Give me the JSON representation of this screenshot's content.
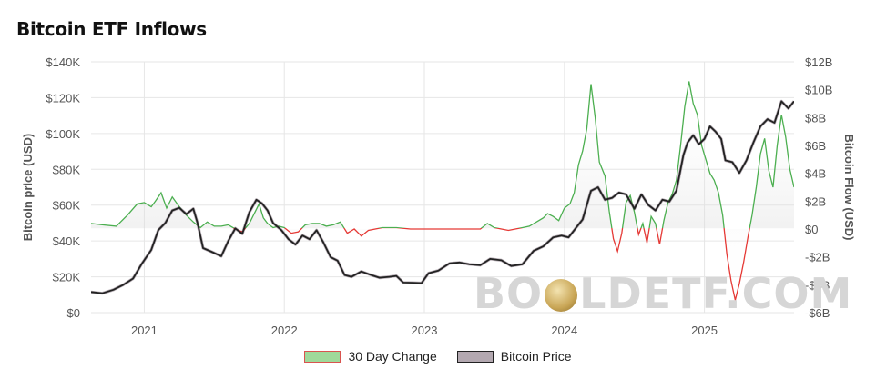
{
  "title": "Bitcoin ETF Inflows",
  "watermark": {
    "left": "BO",
    "right": "LDETF.COM",
    "icon": "gold-coin-icon"
  },
  "legend": {
    "change_label": "30 Day Change",
    "price_label": "Bitcoin Price"
  },
  "colors": {
    "positive": "#4caf50",
    "negative": "#e53935",
    "price": "#222222",
    "grid": "#e6e6e6"
  },
  "chart_data": {
    "type": "line",
    "title": "Bitcoin ETF Inflows",
    "xlabel": "",
    "ylabel": "Bitcoin price (USD)",
    "y2label": "Bitcoin Flow (USD)",
    "x_range": [
      2020.62,
      2025.64
    ],
    "x_ticks": [
      {
        "value": 2021,
        "label": "2021"
      },
      {
        "value": 2022,
        "label": "2022"
      },
      {
        "value": 2023,
        "label": "2023"
      },
      {
        "value": 2024,
        "label": "2024"
      },
      {
        "value": 2025,
        "label": "2025"
      }
    ],
    "ylim": [
      0,
      140000
    ],
    "y_ticks": [
      {
        "value": 0,
        "label": "$0"
      },
      {
        "value": 20000,
        "label": "$20K"
      },
      {
        "value": 40000,
        "label": "$40K"
      },
      {
        "value": 60000,
        "label": "$60K"
      },
      {
        "value": 80000,
        "label": "$80K"
      },
      {
        "value": 100000,
        "label": "$100K"
      },
      {
        "value": 120000,
        "label": "$120K"
      },
      {
        "value": 140000,
        "label": "$140K"
      }
    ],
    "y2lim": [
      -6,
      12
    ],
    "y2_ticks": [
      {
        "value": 12,
        "label": "$12B"
      },
      {
        "value": 10,
        "label": "$10B"
      },
      {
        "value": 8,
        "label": "$8B"
      },
      {
        "value": 6,
        "label": "$6B"
      },
      {
        "value": 4,
        "label": "$4B"
      },
      {
        "value": 2,
        "label": "$2B"
      },
      {
        "value": 0,
        "label": "$0"
      },
      {
        "value": -2,
        "label": "-$2B"
      },
      {
        "value": -4,
        "label": "-$4B"
      },
      {
        "value": -6,
        "label": "-$6B"
      }
    ],
    "grid": true,
    "legend_position": "bottom-center",
    "series": [
      {
        "name": "30 Day Change",
        "axis": "right",
        "unit": "USD billions",
        "points": [
          [
            2020.62,
            0.4
          ],
          [
            2020.7,
            0.3
          ],
          [
            2020.8,
            0.2
          ],
          [
            2020.88,
            1.0
          ],
          [
            2020.95,
            1.8
          ],
          [
            2021.0,
            1.9
          ],
          [
            2021.05,
            1.6
          ],
          [
            2021.08,
            2.0
          ],
          [
            2021.12,
            2.6
          ],
          [
            2021.16,
            1.5
          ],
          [
            2021.2,
            2.3
          ],
          [
            2021.25,
            1.6
          ],
          [
            2021.3,
            1.0
          ],
          [
            2021.35,
            0.5
          ],
          [
            2021.4,
            0.1
          ],
          [
            2021.45,
            0.5
          ],
          [
            2021.5,
            0.2
          ],
          [
            2021.55,
            0.2
          ],
          [
            2021.6,
            0.3
          ],
          [
            2021.65,
            0.0
          ],
          [
            2021.7,
            -0.2
          ],
          [
            2021.75,
            0.4
          ],
          [
            2021.78,
            1.0
          ],
          [
            2021.82,
            1.8
          ],
          [
            2021.85,
            0.8
          ],
          [
            2021.88,
            0.4
          ],
          [
            2021.92,
            0.1
          ],
          [
            2021.96,
            0.2
          ],
          [
            2022.0,
            0.1
          ],
          [
            2022.05,
            -0.3
          ],
          [
            2022.1,
            -0.2
          ],
          [
            2022.15,
            0.3
          ],
          [
            2022.2,
            0.4
          ],
          [
            2022.25,
            0.4
          ],
          [
            2022.3,
            0.2
          ],
          [
            2022.35,
            0.3
          ],
          [
            2022.4,
            0.5
          ],
          [
            2022.45,
            -0.3
          ],
          [
            2022.5,
            0.0
          ],
          [
            2022.55,
            -0.5
          ],
          [
            2022.6,
            -0.1
          ],
          [
            2022.7,
            0.1
          ],
          [
            2022.8,
            0.1
          ],
          [
            2022.9,
            0.0
          ],
          [
            2023.0,
            0.0
          ],
          [
            2023.1,
            0.0
          ],
          [
            2023.2,
            0.0
          ],
          [
            2023.3,
            0.0
          ],
          [
            2023.4,
            0.0
          ],
          [
            2023.45,
            0.4
          ],
          [
            2023.5,
            0.1
          ],
          [
            2023.55,
            0.0
          ],
          [
            2023.6,
            -0.1
          ],
          [
            2023.65,
            0.0
          ],
          [
            2023.7,
            0.1
          ],
          [
            2023.75,
            0.2
          ],
          [
            2023.8,
            0.5
          ],
          [
            2023.85,
            0.8
          ],
          [
            2023.88,
            1.1
          ],
          [
            2023.92,
            0.9
          ],
          [
            2023.96,
            0.6
          ],
          [
            2024.0,
            1.5
          ],
          [
            2024.04,
            1.8
          ],
          [
            2024.07,
            2.6
          ],
          [
            2024.1,
            4.6
          ],
          [
            2024.13,
            5.6
          ],
          [
            2024.16,
            7.2
          ],
          [
            2024.19,
            10.4
          ],
          [
            2024.22,
            8.0
          ],
          [
            2024.25,
            4.8
          ],
          [
            2024.29,
            3.8
          ],
          [
            2024.32,
            1.3
          ],
          [
            2024.35,
            -0.7
          ],
          [
            2024.38,
            -1.6
          ],
          [
            2024.41,
            -0.3
          ],
          [
            2024.44,
            1.9
          ],
          [
            2024.47,
            2.4
          ],
          [
            2024.5,
            1.2
          ],
          [
            2024.53,
            -0.4
          ],
          [
            2024.56,
            0.4
          ],
          [
            2024.59,
            -1.0
          ],
          [
            2024.62,
            0.9
          ],
          [
            2024.65,
            0.4
          ],
          [
            2024.68,
            -1.1
          ],
          [
            2024.71,
            0.6
          ],
          [
            2024.74,
            1.9
          ],
          [
            2024.77,
            2.5
          ],
          [
            2024.8,
            3.5
          ],
          [
            2024.83,
            6.0
          ],
          [
            2024.86,
            8.8
          ],
          [
            2024.89,
            10.6
          ],
          [
            2024.92,
            9.0
          ],
          [
            2024.95,
            8.2
          ],
          [
            2024.98,
            6.0
          ],
          [
            2025.01,
            5.0
          ],
          [
            2025.04,
            4.0
          ],
          [
            2025.07,
            3.5
          ],
          [
            2025.1,
            2.6
          ],
          [
            2025.13,
            1.0
          ],
          [
            2025.16,
            -1.8
          ],
          [
            2025.19,
            -3.7
          ],
          [
            2025.22,
            -5.1
          ],
          [
            2025.25,
            -3.9
          ],
          [
            2025.28,
            -2.4
          ],
          [
            2025.31,
            -0.6
          ],
          [
            2025.34,
            1.0
          ],
          [
            2025.37,
            3.0
          ],
          [
            2025.4,
            5.4
          ],
          [
            2025.43,
            6.5
          ],
          [
            2025.46,
            4.2
          ],
          [
            2025.49,
            3.0
          ],
          [
            2025.52,
            6.0
          ],
          [
            2025.55,
            8.2
          ],
          [
            2025.58,
            6.6
          ],
          [
            2025.61,
            4.3
          ],
          [
            2025.64,
            3.0
          ]
        ]
      },
      {
        "name": "Bitcoin Price",
        "axis": "left",
        "unit": "USD",
        "points": [
          [
            2020.62,
            11500
          ],
          [
            2020.7,
            10800
          ],
          [
            2020.78,
            12800
          ],
          [
            2020.85,
            15500
          ],
          [
            2020.92,
            19000
          ],
          [
            2020.98,
            27000
          ],
          [
            2021.05,
            35000
          ],
          [
            2021.1,
            46000
          ],
          [
            2021.15,
            50000
          ],
          [
            2021.2,
            57000
          ],
          [
            2021.25,
            58500
          ],
          [
            2021.3,
            55000
          ],
          [
            2021.35,
            58000
          ],
          [
            2021.38,
            50000
          ],
          [
            2021.42,
            36000
          ],
          [
            2021.48,
            34000
          ],
          [
            2021.55,
            31500
          ],
          [
            2021.6,
            40000
          ],
          [
            2021.65,
            47000
          ],
          [
            2021.7,
            44000
          ],
          [
            2021.75,
            56000
          ],
          [
            2021.8,
            63000
          ],
          [
            2021.84,
            61000
          ],
          [
            2021.88,
            57000
          ],
          [
            2021.92,
            50000
          ],
          [
            2021.98,
            46000
          ],
          [
            2022.03,
            41000
          ],
          [
            2022.08,
            38000
          ],
          [
            2022.13,
            43000
          ],
          [
            2022.18,
            41000
          ],
          [
            2022.23,
            46000
          ],
          [
            2022.28,
            39000
          ],
          [
            2022.33,
            31000
          ],
          [
            2022.38,
            29000
          ],
          [
            2022.43,
            21000
          ],
          [
            2022.48,
            20000
          ],
          [
            2022.55,
            23000
          ],
          [
            2022.62,
            21000
          ],
          [
            2022.68,
            19500
          ],
          [
            2022.75,
            20000
          ],
          [
            2022.8,
            20500
          ],
          [
            2022.85,
            16800
          ],
          [
            2022.92,
            16700
          ],
          [
            2022.98,
            16500
          ],
          [
            2023.03,
            22000
          ],
          [
            2023.1,
            23500
          ],
          [
            2023.18,
            27500
          ],
          [
            2023.25,
            28000
          ],
          [
            2023.32,
            27000
          ],
          [
            2023.4,
            26500
          ],
          [
            2023.47,
            30000
          ],
          [
            2023.55,
            29200
          ],
          [
            2023.62,
            26000
          ],
          [
            2023.7,
            27000
          ],
          [
            2023.78,
            34500
          ],
          [
            2023.85,
            37000
          ],
          [
            2023.92,
            42000
          ],
          [
            2023.98,
            43000
          ],
          [
            2024.03,
            42000
          ],
          [
            2024.08,
            47000
          ],
          [
            2024.13,
            52000
          ],
          [
            2024.19,
            68000
          ],
          [
            2024.24,
            70000
          ],
          [
            2024.29,
            63000
          ],
          [
            2024.34,
            64000
          ],
          [
            2024.39,
            67000
          ],
          [
            2024.44,
            66000
          ],
          [
            2024.5,
            58000
          ],
          [
            2024.55,
            66000
          ],
          [
            2024.6,
            60000
          ],
          [
            2024.65,
            57000
          ],
          [
            2024.7,
            63000
          ],
          [
            2024.75,
            62000
          ],
          [
            2024.8,
            68000
          ],
          [
            2024.85,
            88000
          ],
          [
            2024.88,
            95000
          ],
          [
            2024.92,
            99000
          ],
          [
            2024.96,
            94000
          ],
          [
            2025.0,
            97000
          ],
          [
            2025.04,
            104000
          ],
          [
            2025.08,
            101000
          ],
          [
            2025.12,
            97000
          ],
          [
            2025.15,
            85000
          ],
          [
            2025.2,
            84000
          ],
          [
            2025.25,
            78000
          ],
          [
            2025.3,
            85000
          ],
          [
            2025.35,
            95000
          ],
          [
            2025.4,
            104000
          ],
          [
            2025.45,
            108000
          ],
          [
            2025.5,
            106000
          ],
          [
            2025.55,
            118000
          ],
          [
            2025.6,
            114000
          ],
          [
            2025.64,
            118000
          ]
        ]
      }
    ]
  }
}
